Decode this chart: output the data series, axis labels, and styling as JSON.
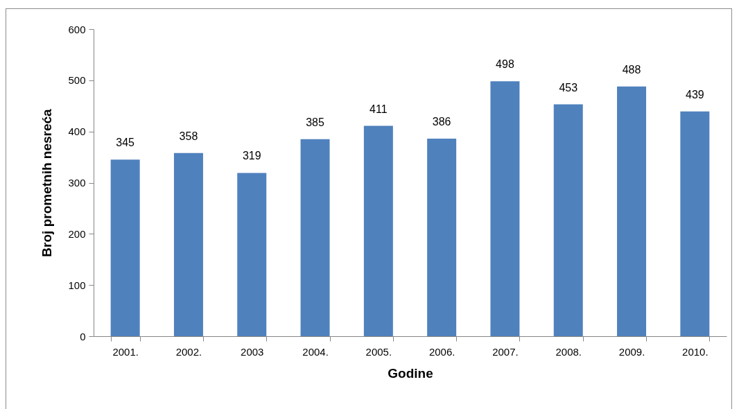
{
  "chart_data": {
    "type": "bar",
    "xlabel": "Godine",
    "ylabel": "Broj prometnih nesreća",
    "categories": [
      "2001.",
      "2002.",
      "2003",
      "2004.",
      "2005.",
      "2006.",
      "2007.",
      "2008.",
      "2009.",
      "2010."
    ],
    "values": [
      345,
      358,
      319,
      385,
      411,
      386,
      498,
      453,
      488,
      439
    ],
    "color": "#4f81bd",
    "ylim": [
      0,
      600
    ],
    "yticks": [
      0,
      100,
      200,
      300,
      400,
      500,
      600
    ],
    "grid": false,
    "data_labels": true
  }
}
